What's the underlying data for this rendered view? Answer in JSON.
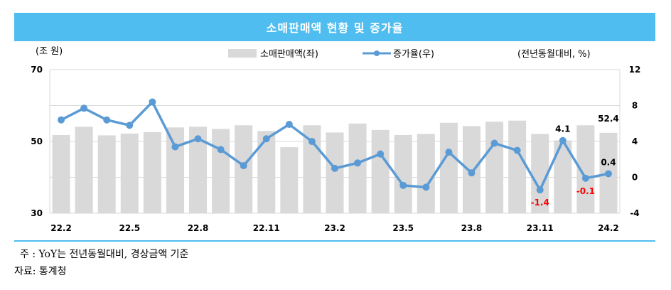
{
  "title": "소매판매액 현황 및 증가율",
  "note": "주 : YoY는 전년동월대비, 경상금액 기준",
  "source": "자료: 통계청",
  "colors": {
    "title_bg": "#4fbdf0",
    "bar": "#d9d9d9",
    "line": "#5b9bd5",
    "negative_label": "#ff0000"
  },
  "chart_data": {
    "type": "bar+line",
    "left_axis_unit": "(조 원)",
    "right_axis_unit": "(전년동월대비, %)",
    "ylim_left": [
      30,
      70
    ],
    "yticks_left": [
      30,
      50,
      70
    ],
    "ylim_right": [
      -4,
      12
    ],
    "yticks_right": [
      -4,
      0,
      4,
      8,
      12
    ],
    "x_tick_labels": [
      "22.2",
      "22.5",
      "22.8",
      "22.11",
      "23.2",
      "23.5",
      "23.8",
      "23.11",
      "24.2"
    ],
    "x_tick_every": 3,
    "categories": [
      "22.2",
      "22.3",
      "22.4",
      "22.5",
      "22.6",
      "22.7",
      "22.8",
      "22.9",
      "22.10",
      "22.11",
      "22.12",
      "23.1",
      "23.2",
      "23.3",
      "23.4",
      "23.5",
      "23.6",
      "23.7",
      "23.8",
      "23.9",
      "23.10",
      "23.11",
      "23.12",
      "24.1",
      "24.2"
    ],
    "grid": true,
    "legend_position": "top",
    "series": [
      {
        "name": "소매판매액(좌)",
        "type": "bar",
        "axis": "left",
        "values": [
          51.8,
          54.1,
          51.7,
          52.2,
          52.6,
          53.9,
          54.1,
          53.5,
          54.5,
          52.9,
          48.4,
          54.5,
          52.5,
          55.0,
          53.2,
          51.8,
          52.1,
          55.2,
          54.3,
          55.5,
          55.8,
          52.1,
          50.3,
          54.5,
          52.4
        ]
      },
      {
        "name": "증가율(우)",
        "type": "line",
        "axis": "right",
        "values": [
          6.4,
          7.7,
          6.4,
          5.8,
          8.4,
          3.4,
          4.3,
          3.1,
          1.3,
          4.3,
          5.9,
          4.0,
          1.0,
          1.6,
          2.6,
          -0.9,
          -1.1,
          2.8,
          0.5,
          3.8,
          3.0,
          -1.4,
          4.1,
          -0.1,
          0.4
        ]
      }
    ],
    "annotations": [
      {
        "index": 21,
        "series": "증가율(우)",
        "text": "-1.4",
        "negative": true
      },
      {
        "index": 22,
        "series": "증가율(우)",
        "text": "4.1",
        "negative": false
      },
      {
        "index": 23,
        "series": "증가율(우)",
        "text": "-0.1",
        "negative": true
      },
      {
        "index": 24,
        "series": "증가율(우)",
        "text": "0.4",
        "negative": false
      },
      {
        "index": 24,
        "series": "소매판매액(좌)",
        "text": "52.4",
        "negative": false
      }
    ]
  }
}
